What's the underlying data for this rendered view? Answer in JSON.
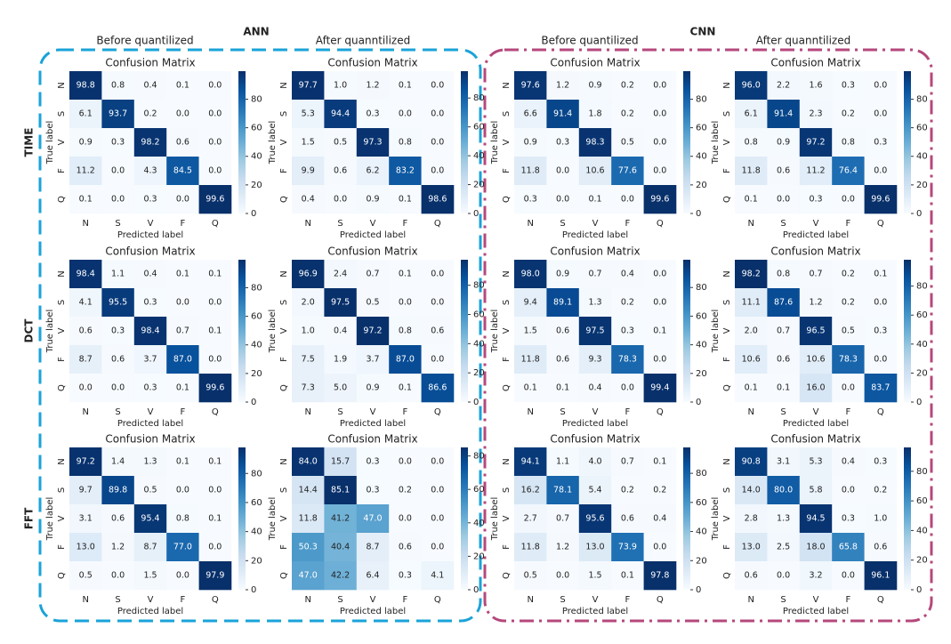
{
  "figure": {
    "groups": [
      "ANN",
      "CNN"
    ],
    "columns": [
      "Before quantilized",
      "After quanntilized",
      "Before quantilized",
      "After quanntilized"
    ],
    "rows": [
      "TIME",
      "DCT",
      "FFT"
    ]
  },
  "chart_data": [
    {
      "type": "heatmap",
      "title": "Confusion Matrix",
      "xlabel": "Predicted label",
      "ylabel": "True label",
      "x_categories": [
        "N",
        "S",
        "V",
        "F",
        "Q"
      ],
      "y_categories": [
        "N",
        "S",
        "V",
        "F",
        "Q"
      ],
      "colormap": "Blues",
      "clim": [
        0,
        99.6
      ],
      "cticks": [
        0,
        20,
        40,
        60,
        80
      ],
      "values": [
        [
          98.8,
          0.8,
          0.4,
          0.1,
          0.0
        ],
        [
          6.1,
          93.7,
          0.2,
          0.0,
          0.0
        ],
        [
          0.9,
          0.3,
          98.2,
          0.6,
          0.0
        ],
        [
          11.2,
          0.0,
          4.3,
          84.5,
          0.0
        ],
        [
          0.1,
          0.0,
          0.3,
          0.0,
          99.6
        ]
      ],
      "value_labels": [
        [
          "98.8",
          "0.8",
          "0.4",
          "0.1",
          "0.0"
        ],
        [
          "6.1",
          "93.7",
          "0.2",
          "0.0",
          "0.0"
        ],
        [
          "0.9",
          "0.3",
          "98.2",
          "0.6",
          "0.0"
        ],
        [
          "11.2",
          "0.0",
          "4.3",
          "84.5",
          "0.0"
        ],
        [
          "0.1",
          "0.0",
          "0.3",
          "0.0",
          "99.6"
        ]
      ]
    },
    {
      "type": "heatmap",
      "title": "Confusion Matrix",
      "xlabel": "Predicted label",
      "ylabel": "True label",
      "x_categories": [
        "N",
        "S",
        "V",
        "F",
        "Q"
      ],
      "y_categories": [
        "N",
        "S",
        "V",
        "F",
        "Q"
      ],
      "colormap": "Blues",
      "clim": [
        0,
        98.6
      ],
      "cticks": [
        0,
        20,
        40,
        60,
        80
      ],
      "values": [
        [
          97.7,
          1.0,
          1.2,
          0.1,
          0.0
        ],
        [
          5.3,
          94.4,
          0.3,
          0.0,
          0.0
        ],
        [
          1.5,
          0.5,
          97.3,
          0.8,
          0.0
        ],
        [
          9.9,
          0.6,
          6.2,
          83.2,
          0.0
        ],
        [
          0.4,
          0.0,
          0.9,
          0.1,
          98.6
        ]
      ],
      "value_labels": [
        [
          "97.7",
          "1.0",
          "1.2",
          "0.1",
          "0.0"
        ],
        [
          "5.3",
          "94.4",
          "0.3",
          "0.0",
          "0.0"
        ],
        [
          "1.5",
          "0.5",
          "97.3",
          "0.8",
          "0.0"
        ],
        [
          "9.9",
          "0.6",
          "6.2",
          "83.2",
          "0.0"
        ],
        [
          "0.4",
          "0.0",
          "0.9",
          "0.1",
          "98.6"
        ]
      ]
    },
    {
      "type": "heatmap",
      "title": "Confusion Matrix",
      "xlabel": "Predicted label",
      "ylabel": "True label",
      "x_categories": [
        "N",
        "S",
        "V",
        "F",
        "Q"
      ],
      "y_categories": [
        "N",
        "S",
        "V",
        "F",
        "Q"
      ],
      "colormap": "Blues",
      "clim": [
        0,
        99.6
      ],
      "cticks": [
        0,
        20,
        40,
        60,
        80
      ],
      "values": [
        [
          97.6,
          1.2,
          0.9,
          0.2,
          0.0
        ],
        [
          6.6,
          91.4,
          1.8,
          0.2,
          0.0
        ],
        [
          0.9,
          0.3,
          98.3,
          0.5,
          0.0
        ],
        [
          11.8,
          0.0,
          10.6,
          77.6,
          0.0
        ],
        [
          0.3,
          0.0,
          0.1,
          0.0,
          99.6
        ]
      ],
      "value_labels": [
        [
          "97.6",
          "1.2",
          "0.9",
          "0.2",
          "0.0"
        ],
        [
          "6.6",
          "91.4",
          "1.8",
          "0.2",
          "0.0"
        ],
        [
          "0.9",
          "0.3",
          "98.3",
          "0.5",
          "0.0"
        ],
        [
          "11.8",
          "0.0",
          "10.6",
          "77.6",
          "0.0"
        ],
        [
          "0.3",
          "0.0",
          "0.1",
          "0.0",
          "99.6"
        ]
      ]
    },
    {
      "type": "heatmap",
      "title": "Confusion Matrix",
      "xlabel": "Predicted label",
      "ylabel": "True label",
      "x_categories": [
        "N",
        "S",
        "V",
        "F",
        "Q"
      ],
      "y_categories": [
        "N",
        "S",
        "V",
        "F",
        "Q"
      ],
      "colormap": "Blues",
      "clim": [
        0,
        99.6
      ],
      "cticks": [
        0,
        20,
        40,
        60,
        80
      ],
      "values": [
        [
          96.0,
          2.2,
          1.6,
          0.3,
          0.0
        ],
        [
          6.1,
          91.4,
          2.3,
          0.2,
          0.0
        ],
        [
          0.8,
          0.9,
          97.2,
          0.8,
          0.3
        ],
        [
          11.8,
          0.6,
          11.2,
          76.4,
          0.0
        ],
        [
          0.1,
          0.0,
          0.3,
          0.0,
          99.6
        ]
      ],
      "value_labels": [
        [
          "96.0",
          "2.2",
          "1.6",
          "0.3",
          "0.0"
        ],
        [
          "6.1",
          "91.4",
          "2.3",
          "0.2",
          "0.0"
        ],
        [
          "0.8",
          "0.9",
          "97.2",
          "0.8",
          "0.3"
        ],
        [
          "11.8",
          "0.6",
          "11.2",
          "76.4",
          "0.0"
        ],
        [
          "0.1",
          "0.0",
          "0.3",
          "0.0",
          "99.6"
        ]
      ]
    },
    {
      "type": "heatmap",
      "title": "Confusion Matrix",
      "xlabel": "Predicted label",
      "ylabel": "True label",
      "x_categories": [
        "N",
        "S",
        "V",
        "F",
        "Q"
      ],
      "y_categories": [
        "N",
        "S",
        "V",
        "F",
        "Q"
      ],
      "colormap": "Blues",
      "clim": [
        0,
        99.6
      ],
      "cticks": [
        0,
        20,
        40,
        60,
        80
      ],
      "values": [
        [
          98.4,
          1.1,
          0.4,
          0.1,
          0.1
        ],
        [
          4.1,
          95.5,
          0.3,
          0.0,
          0.0
        ],
        [
          0.6,
          0.3,
          98.4,
          0.7,
          0.1
        ],
        [
          8.7,
          0.6,
          3.7,
          87.0,
          0.0
        ],
        [
          0.0,
          0.0,
          0.3,
          0.1,
          99.6
        ]
      ],
      "value_labels": [
        [
          "98.4",
          "1.1",
          "0.4",
          "0.1",
          "0.1"
        ],
        [
          "4.1",
          "95.5",
          "0.3",
          "0.0",
          "0.0"
        ],
        [
          "0.6",
          "0.3",
          "98.4",
          "0.7",
          "0.1"
        ],
        [
          "8.7",
          "0.6",
          "3.7",
          "87.0",
          "0.0"
        ],
        [
          "0.0",
          "0.0",
          "0.3",
          "0.1",
          "99.6"
        ]
      ]
    },
    {
      "type": "heatmap",
      "title": "Confusion Matrix",
      "xlabel": "Predicted label",
      "ylabel": "True label",
      "x_categories": [
        "N",
        "S",
        "V",
        "F",
        "Q"
      ],
      "y_categories": [
        "N",
        "S",
        "V",
        "F",
        "Q"
      ],
      "colormap": "Blues",
      "clim": [
        0,
        97.5
      ],
      "cticks": [
        0,
        20,
        40,
        60,
        80
      ],
      "values": [
        [
          96.9,
          2.4,
          0.7,
          0.1,
          0.0
        ],
        [
          2.0,
          97.5,
          0.5,
          0.0,
          0.0
        ],
        [
          1.0,
          0.4,
          97.2,
          0.8,
          0.6
        ],
        [
          7.5,
          1.9,
          3.7,
          87.0,
          0.0
        ],
        [
          7.3,
          5.0,
          0.9,
          0.1,
          86.6
        ]
      ],
      "value_labels": [
        [
          "96.9",
          "2.4",
          "0.7",
          "0.1",
          "0.0"
        ],
        [
          "2.0",
          "97.5",
          "0.5",
          "0.0",
          "0.0"
        ],
        [
          "1.0",
          "0.4",
          "97.2",
          "0.8",
          "0.6"
        ],
        [
          "7.5",
          "1.9",
          "3.7",
          "87.0",
          "0.0"
        ],
        [
          "7.3",
          "5.0",
          "0.9",
          "0.1",
          "86.6"
        ]
      ]
    },
    {
      "type": "heatmap",
      "title": "Confusion Matrix",
      "xlabel": "Predicted label",
      "ylabel": "True label",
      "x_categories": [
        "N",
        "S",
        "V",
        "F",
        "Q"
      ],
      "y_categories": [
        "N",
        "S",
        "V",
        "F",
        "Q"
      ],
      "colormap": "Blues",
      "clim": [
        0,
        99.4
      ],
      "cticks": [
        0,
        20,
        40,
        60,
        80
      ],
      "values": [
        [
          98.0,
          0.9,
          0.7,
          0.4,
          0.0
        ],
        [
          9.4,
          89.1,
          1.3,
          0.2,
          0.0
        ],
        [
          1.5,
          0.6,
          97.5,
          0.3,
          0.1
        ],
        [
          11.8,
          0.6,
          9.3,
          78.3,
          0.0
        ],
        [
          0.1,
          0.1,
          0.4,
          0.0,
          99.4
        ]
      ],
      "value_labels": [
        [
          "98.0",
          "0.9",
          "0.7",
          "0.4",
          "0.0"
        ],
        [
          "9.4",
          "89.1",
          "1.3",
          "0.2",
          "0.0"
        ],
        [
          "1.5",
          "0.6",
          "97.5",
          "0.3",
          "0.1"
        ],
        [
          "11.8",
          "0.6",
          "9.3",
          "78.3",
          "0.0"
        ],
        [
          "0.1",
          "0.1",
          "0.4",
          "0.0",
          "99.4"
        ]
      ]
    },
    {
      "type": "heatmap",
      "title": "Confusion Matrix",
      "xlabel": "Predicted label",
      "ylabel": "True label",
      "x_categories": [
        "N",
        "S",
        "V",
        "F",
        "Q"
      ],
      "y_categories": [
        "N",
        "S",
        "V",
        "F",
        "Q"
      ],
      "colormap": "Blues",
      "clim": [
        0,
        98.2
      ],
      "cticks": [
        0,
        20,
        40,
        60,
        80
      ],
      "values": [
        [
          98.2,
          0.8,
          0.7,
          0.2,
          0.1
        ],
        [
          11.1,
          87.6,
          1.2,
          0.2,
          0.0
        ],
        [
          2.0,
          0.7,
          96.5,
          0.5,
          0.3
        ],
        [
          10.6,
          0.6,
          10.6,
          78.3,
          0.0
        ],
        [
          0.1,
          0.1,
          16.0,
          0.0,
          83.7
        ]
      ],
      "value_labels": [
        [
          "98.2",
          "0.8",
          "0.7",
          "0.2",
          "0.1"
        ],
        [
          "11.1",
          "87.6",
          "1.2",
          "0.2",
          "0.0"
        ],
        [
          "2.0",
          "0.7",
          "96.5",
          "0.5",
          "0.3"
        ],
        [
          "10.6",
          "0.6",
          "10.6",
          "78.3",
          "0.0"
        ],
        [
          "0.1",
          "0.1",
          "16.0",
          "0.0",
          "83.7"
        ]
      ]
    },
    {
      "type": "heatmap",
      "title": "Confusion Matrix",
      "xlabel": "Predicted label",
      "ylabel": "True label",
      "x_categories": [
        "N",
        "S",
        "V",
        "F",
        "Q"
      ],
      "y_categories": [
        "N",
        "S",
        "V",
        "F",
        "Q"
      ],
      "colormap": "Blues",
      "clim": [
        0,
        97.9
      ],
      "cticks": [
        0,
        20,
        40,
        60,
        80
      ],
      "values": [
        [
          97.2,
          1.4,
          1.3,
          0.1,
          0.1
        ],
        [
          9.7,
          89.8,
          0.5,
          0.0,
          0.0
        ],
        [
          3.1,
          0.6,
          95.4,
          0.8,
          0.1
        ],
        [
          13.0,
          1.2,
          8.7,
          77.0,
          0.0
        ],
        [
          0.5,
          0.0,
          1.5,
          0.0,
          97.9
        ]
      ],
      "value_labels": [
        [
          "97.2",
          "1.4",
          "1.3",
          "0.1",
          "0.1"
        ],
        [
          "9.7",
          "89.8",
          "0.5",
          "0.0",
          "0.0"
        ],
        [
          "3.1",
          "0.6",
          "95.4",
          "0.8",
          "0.1"
        ],
        [
          "13.0",
          "1.2",
          "8.7",
          "77.0",
          "0.0"
        ],
        [
          "0.5",
          "0.0",
          "1.5",
          "0.0",
          "97.9"
        ]
      ]
    },
    {
      "type": "heatmap",
      "title": "Confusion Matrix",
      "xlabel": "Predicted label",
      "ylabel": "True label",
      "x_categories": [
        "N",
        "S",
        "V",
        "F",
        "Q"
      ],
      "y_categories": [
        "N",
        "S",
        "V",
        "F",
        "Q"
      ],
      "colormap": "Blues",
      "clim": [
        0,
        85.1
      ],
      "cticks": [
        0,
        20,
        40,
        60,
        80
      ],
      "values": [
        [
          84.0,
          15.7,
          0.3,
          0.0,
          0.0
        ],
        [
          14.4,
          85.1,
          0.3,
          0.2,
          0.0
        ],
        [
          11.8,
          41.2,
          47.0,
          0.0,
          0.0
        ],
        [
          50.3,
          40.4,
          8.7,
          0.6,
          0.0
        ],
        [
          47.0,
          42.2,
          6.4,
          0.3,
          4.1
        ]
      ],
      "value_labels": [
        [
          "84.0",
          "15.7",
          "0.3",
          "0.0",
          "0.0"
        ],
        [
          "14.4",
          "85.1",
          "0.3",
          "0.2",
          "0.0"
        ],
        [
          "11.8",
          "41.2",
          "47.0",
          "0.0",
          "0.0"
        ],
        [
          "50.3",
          "40.4",
          "8.7",
          "0.6",
          "0.0"
        ],
        [
          "47.0",
          "42.2",
          "6.4",
          "0.3",
          "4.1"
        ]
      ]
    },
    {
      "type": "heatmap",
      "title": "Confusion Matrix",
      "xlabel": "Predicted label",
      "ylabel": "True label",
      "x_categories": [
        "N",
        "S",
        "V",
        "F",
        "Q"
      ],
      "y_categories": [
        "N",
        "S",
        "V",
        "F",
        "Q"
      ],
      "colormap": "Blues",
      "clim": [
        0,
        97.8
      ],
      "cticks": [
        0,
        20,
        40,
        60,
        80
      ],
      "values": [
        [
          94.1,
          1.1,
          4.0,
          0.7,
          0.1
        ],
        [
          16.2,
          78.1,
          5.4,
          0.2,
          0.2
        ],
        [
          2.7,
          0.7,
          95.6,
          0.6,
          0.4
        ],
        [
          11.8,
          1.2,
          13.0,
          73.9,
          0.0
        ],
        [
          0.5,
          0.0,
          1.5,
          0.1,
          97.8
        ]
      ],
      "value_labels": [
        [
          "94.1",
          "1.1",
          "4.0",
          "0.7",
          "0.1"
        ],
        [
          "16.2",
          "78.1",
          "5.4",
          "0.2",
          "0.2"
        ],
        [
          "2.7",
          "0.7",
          "95.6",
          "0.6",
          "0.4"
        ],
        [
          "11.8",
          "1.2",
          "13.0",
          "73.9",
          "0.0"
        ],
        [
          "0.5",
          "0.0",
          "1.5",
          "0.1",
          "97.8"
        ]
      ]
    },
    {
      "type": "heatmap",
      "title": "Confusion Matrix",
      "xlabel": "Predicted label",
      "ylabel": "True label",
      "x_categories": [
        "N",
        "S",
        "V",
        "F",
        "Q"
      ],
      "y_categories": [
        "N",
        "S",
        "V",
        "F",
        "Q"
      ],
      "colormap": "Blues",
      "clim": [
        0,
        96.1
      ],
      "cticks": [
        0,
        20,
        40,
        60,
        80
      ],
      "values": [
        [
          90.8,
          3.1,
          5.3,
          0.4,
          0.3
        ],
        [
          14.0,
          80.0,
          5.8,
          0.0,
          0.2
        ],
        [
          2.8,
          1.3,
          94.5,
          0.3,
          1.0
        ],
        [
          13.0,
          2.5,
          18.0,
          65.8,
          0.6
        ],
        [
          0.6,
          0.0,
          3.2,
          0.0,
          96.1
        ]
      ],
      "value_labels": [
        [
          "90.8",
          "3.1",
          "5.3",
          "0.4",
          "0.3"
        ],
        [
          "14.0",
          "80.0",
          "5.8",
          "0.0",
          "0.2"
        ],
        [
          "2.8",
          "1.3",
          "94.5",
          "0.3",
          "1.0"
        ],
        [
          "13.0",
          "2.5",
          "18.0",
          "65.8",
          "0.6"
        ],
        [
          "0.6",
          "0.0",
          "3.2",
          "0.0",
          "96.1"
        ]
      ]
    }
  ]
}
